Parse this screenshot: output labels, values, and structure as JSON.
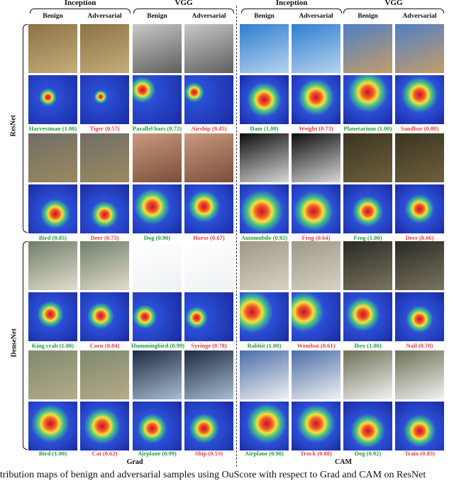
{
  "headers": {
    "left_inception": "Inception",
    "left_vgg": "VGG",
    "right_inception": "Inception",
    "right_vgg": "VGG",
    "benign": "Benign",
    "adversarial": "Adversarial"
  },
  "networks": {
    "resnet": "ResNet",
    "densenet": "DenseNet"
  },
  "bottom": {
    "grad": "Grad",
    "cam": "CAM"
  },
  "caption": "ttribution maps of benign and adversarial samples using OuScore with respect to Grad and CAM on ResNet",
  "colors": {
    "green": "#1f9a3f",
    "red": "#e0404a"
  },
  "rows": [
    {
      "labels": [
        {
          "text": "Harvestman (1.00)",
          "tone": "green"
        },
        {
          "text": "Tiger (0.57)",
          "tone": "red"
        },
        {
          "text": "Parallel bars (0.72)",
          "tone": "green"
        },
        {
          "text": "Airship (0.45)",
          "tone": "red"
        },
        {
          "text": "Dam (1.00)",
          "tone": "green"
        },
        {
          "text": "Weight (0.73)",
          "tone": "red"
        },
        {
          "text": "Planetarium (1.00)",
          "tone": "green"
        },
        {
          "text": "Sandbar (0.80)",
          "tone": "red"
        }
      ]
    },
    {
      "labels": [
        {
          "text": "Bird (0.85)",
          "tone": "green"
        },
        {
          "text": "Deer (0.73)",
          "tone": "red"
        },
        {
          "text": "Dog (0.90)",
          "tone": "green"
        },
        {
          "text": "Horse (0.67)",
          "tone": "red"
        },
        {
          "text": "Automobile (0.92)",
          "tone": "green"
        },
        {
          "text": "Frog (0.64)",
          "tone": "red"
        },
        {
          "text": "Frog (1.00)",
          "tone": "green"
        },
        {
          "text": "Deer (0.66)",
          "tone": "red"
        }
      ]
    },
    {
      "labels": [
        {
          "text": "King crab (1.00)",
          "tone": "green"
        },
        {
          "text": "Corn (0.84)",
          "tone": "red"
        },
        {
          "text": "Hummingbird (0.99)",
          "tone": "green"
        },
        {
          "text": "Syringe (0.78)",
          "tone": "red"
        },
        {
          "text": "Rabbit (1.00)",
          "tone": "green"
        },
        {
          "text": "Wombat (0.61)",
          "tone": "red"
        },
        {
          "text": "Ibex (1.00)",
          "tone": "green"
        },
        {
          "text": "Nail (0.70)",
          "tone": "red"
        }
      ]
    },
    {
      "labels": [
        {
          "text": "Bird (1.00)",
          "tone": "green"
        },
        {
          "text": "Cat (0.62)",
          "tone": "red"
        },
        {
          "text": "Airplane (0.99)",
          "tone": "green"
        },
        {
          "text": "Ship (0.53)",
          "tone": "red"
        },
        {
          "text": "Airplane (0.90)",
          "tone": "green"
        },
        {
          "text": "Truck (0.88)",
          "tone": "red"
        },
        {
          "text": "Dog (0.92)",
          "tone": "green"
        },
        {
          "text": "Train (0.83)",
          "tone": "red"
        }
      ]
    }
  ]
}
